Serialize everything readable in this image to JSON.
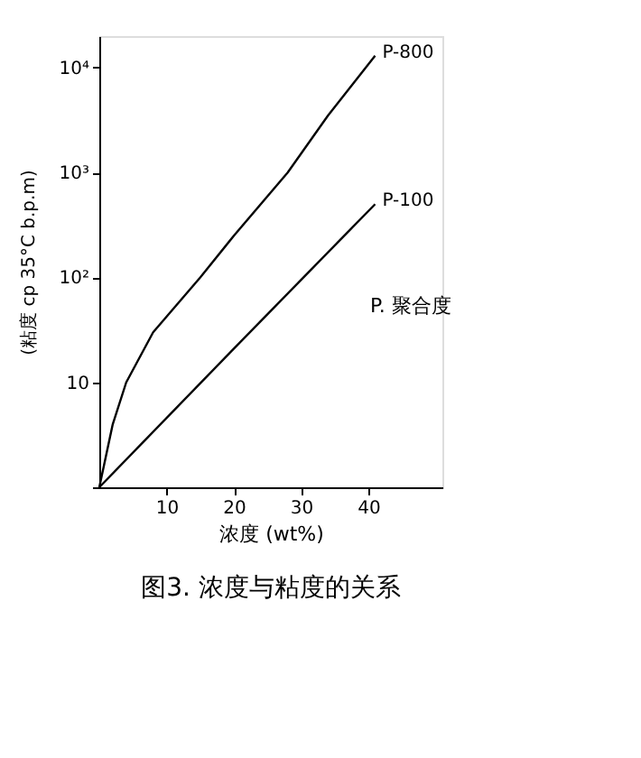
{
  "chart_data": {
    "type": "line",
    "title": "图3. 浓度与粘度的关系",
    "xlabel": "浓度 (wt%)",
    "ylabel": "(粘度 cp 35°C b.p.m)",
    "annotations": [
      "P. 聚合度"
    ],
    "series": [
      {
        "name": "P-800",
        "color": "#000000",
        "x": [
          0,
          2,
          4,
          8,
          15,
          20,
          28,
          34,
          41
        ],
        "values": [
          1,
          4,
          10,
          30,
          100,
          250,
          1000,
          3500,
          13000
        ]
      },
      {
        "name": "P-100",
        "color": "#000000",
        "x": [
          0,
          20,
          41
        ],
        "values": [
          1,
          21,
          500
        ]
      }
    ],
    "log": "y",
    "xlim": [
      0,
      51
    ],
    "xticks": [
      10,
      20,
      30,
      40
    ],
    "ylim": [
      1,
      20000
    ],
    "yticks": [
      {
        "value": 1,
        "label": null
      },
      10,
      {
        "value": 100,
        "label": "10²"
      },
      {
        "value": 1000,
        "label": "10³"
      },
      {
        "value": 10000,
        "label": "10⁴"
      }
    ],
    "grid": false,
    "marker": "none",
    "line_style": "solid"
  }
}
